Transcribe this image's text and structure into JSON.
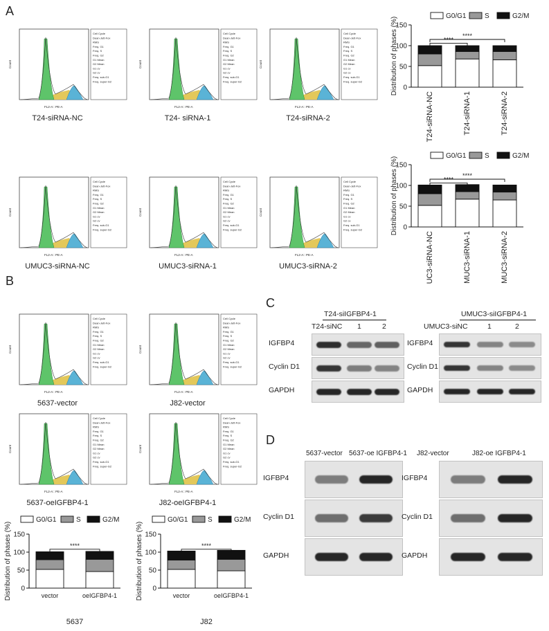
{
  "panels": {
    "A": "A",
    "B": "B",
    "C": "C",
    "D": "D"
  },
  "flow_axis": {
    "x_label": "FL2-A:: PE-A",
    "y_label": "Count"
  },
  "flow_stats_lines": [
    "Cell Cycle",
    "Dean-Jett-Fox",
    "RMS",
    "Freq. G1",
    "Freq. S",
    "Freq. G2",
    "G1 Mean",
    "G2 Mean",
    "G1 cv",
    "G2 cv",
    "Freq. sub-G1",
    "Freq. super-G2"
  ],
  "flow_captions": {
    "a1": "T24-siRNA-NC",
    "a2": "T24- siRNA-1",
    "a3": "T24-siRNA-2",
    "a4": "UMUC3-siRNA-NC",
    "a5": "UMUC3-siRNA-1",
    "a6": "UMUC3-siRNA-2",
    "b1": "5637-vector",
    "b2": "J82-vector",
    "b3": "5637-oeIGFBP4-1",
    "b4": "J82-oeIGFBP4-1"
  },
  "legend": {
    "g0g1": "G0/G1",
    "s": "S",
    "g2m": "G2/M"
  },
  "significance": "****",
  "chart_data": [
    {
      "id": "A-top",
      "type": "bar",
      "stacked": true,
      "categories": [
        "T24-siRNA-NC",
        "T24-siRNA-1",
        "T24-siRNA-2"
      ],
      "series": [
        {
          "name": "G0/G1",
          "values": [
            52,
            68,
            66
          ]
        },
        {
          "name": "S",
          "values": [
            28,
            18,
            20
          ]
        },
        {
          "name": "G2/M",
          "values": [
            20,
            14,
            14
          ]
        }
      ],
      "ylabel": "Distribution of phases (%)",
      "ylim": [
        0,
        150
      ],
      "yticks": [
        0,
        50,
        100,
        150
      ],
      "legend": "top"
    },
    {
      "id": "A-bottom",
      "type": "bar",
      "stacked": true,
      "categories": [
        "UMUC3-siRNA-NC",
        "UMUC3-siRNA-1",
        "UMUC3-siRNA-2"
      ],
      "series": [
        {
          "name": "G0/G1",
          "values": [
            52,
            67,
            65
          ]
        },
        {
          "name": "S",
          "values": [
            28,
            18,
            19
          ]
        },
        {
          "name": "G2/M",
          "values": [
            21,
            17,
            17
          ]
        }
      ],
      "ylabel": "Distribution of phases (%)",
      "ylim": [
        0,
        150
      ],
      "yticks": [
        0,
        50,
        100,
        150
      ],
      "legend": "top"
    },
    {
      "id": "B-5637",
      "type": "bar",
      "stacked": true,
      "categories": [
        "vector",
        "oeIGFBP4-1"
      ],
      "series": [
        {
          "name": "G0/G1",
          "values": [
            52,
            46
          ]
        },
        {
          "name": "S",
          "values": [
            27,
            34
          ]
        },
        {
          "name": "G2/M",
          "values": [
            22,
            22
          ]
        }
      ],
      "ylabel": "Distribution of phases (%)",
      "ylim": [
        0,
        150
      ],
      "yticks": [
        0,
        50,
        100,
        150
      ],
      "xlabel": "5637",
      "legend": "top"
    },
    {
      "id": "B-J82",
      "type": "bar",
      "stacked": true,
      "categories": [
        "vector",
        "oeIGFBP4-1"
      ],
      "series": [
        {
          "name": "G0/G1",
          "values": [
            52,
            48
          ]
        },
        {
          "name": "S",
          "values": [
            26,
            32
          ]
        },
        {
          "name": "G2/M",
          "values": [
            25,
            25
          ]
        }
      ],
      "ylabel": "Distribution of phases (%)",
      "ylim": [
        0,
        150
      ],
      "yticks": [
        0,
        50,
        100,
        150
      ],
      "xlabel": "J82",
      "legend": "top"
    }
  ],
  "blots": {
    "C_left": {
      "header": "T24-siIGFBP4-1",
      "lanes": [
        "T24-siNC",
        "1",
        "2"
      ],
      "rows": [
        "IGFBP4",
        "Cyclin D1",
        "GAPDH"
      ]
    },
    "C_right": {
      "header": "UMUC3-siIGFBP4-1",
      "lanes": [
        "UMUC3-siNC",
        "1",
        "2"
      ],
      "rows": [
        "IGFBP4",
        "Cyclin D1",
        "GAPDH"
      ]
    },
    "D_left": {
      "lanes": [
        "5637-vector",
        "5637-oe IGFBP4-1"
      ],
      "rows": [
        "IGFBP4",
        "Cyclin D1",
        "GAPDH"
      ]
    },
    "D_right": {
      "lanes": [
        "J82-vector",
        "J82-oe IGFBP4-1"
      ],
      "rows": [
        "IGFBP4",
        "Cyclin D1",
        "GAPDH"
      ]
    }
  }
}
